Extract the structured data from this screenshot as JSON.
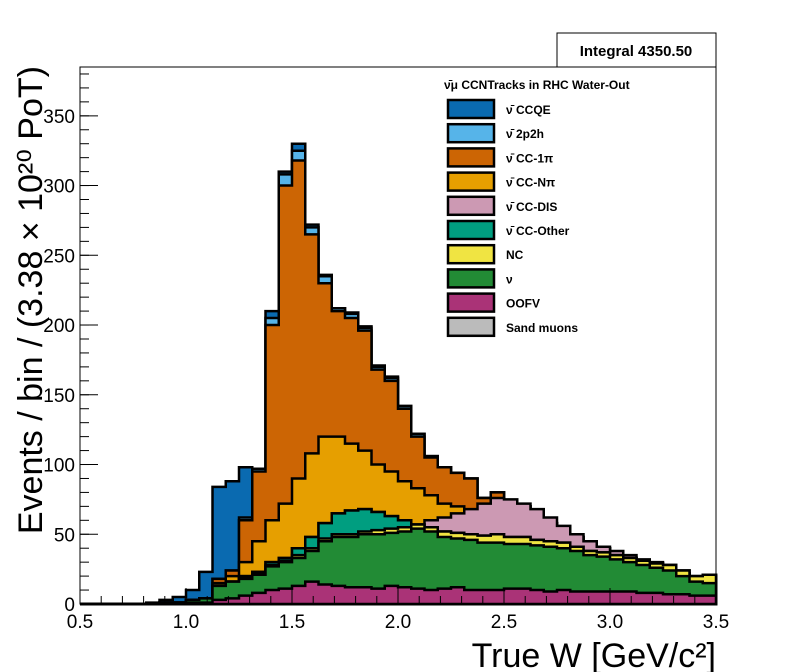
{
  "chart_data": {
    "type": "stacked-histogram",
    "title": "",
    "legend_header": "ν̄μ CCNTracks in RHC Water-Out",
    "xlabel": "True W [GeV/c²]",
    "ylabel": "Events / bin / (3.38 × 10²⁰ PoT)",
    "xlim": [
      0.5,
      3.5
    ],
    "ylim": [
      0,
      385
    ],
    "x_ticks": [
      "0.5",
      "1.0",
      "1.5",
      "2.0",
      "2.5",
      "3.0",
      "3.5"
    ],
    "y_ticks": [
      "0",
      "50",
      "100",
      "150",
      "200",
      "250",
      "300",
      "350"
    ],
    "legend_placement": "top-right",
    "stats_box": "Integral 4350.50",
    "bin_width": 0.0625,
    "stack_order_bottom_to_top": [
      "OOFV",
      "ν",
      "NC",
      "ν̄ CC-Other",
      "ν̄ CC-DIS",
      "ν̄ CC-Nπ",
      "ν̄ CC-1π",
      "ν̄ 2p2h",
      "ν̄ CCQE"
    ],
    "legend_entries": [
      {
        "name": "ν̄ CCQE",
        "color": "#0a6ab0"
      },
      {
        "name": "ν̄ 2p2h",
        "color": "#56b4e9"
      },
      {
        "name": "ν̄ CC-1π",
        "color": "#cc6504"
      },
      {
        "name": "ν̄ CC-Nπ",
        "color": "#e69f00"
      },
      {
        "name": "ν̄ CC-DIS",
        "color": "#cc99b3"
      },
      {
        "name": "ν̄ CC-Other",
        "color": "#009e80"
      },
      {
        "name": "NC",
        "color": "#f0e442"
      },
      {
        "name": "ν",
        "color": "#228b35"
      },
      {
        "name": "OOFV",
        "color": "#aa3377"
      },
      {
        "name": "Sand muons",
        "color": "#bbbbbb"
      }
    ],
    "cumulative_levels_note": "each series lists the cumulative stack height (top edge) per bin",
    "series_cumulative": [
      {
        "name": "OOFV",
        "values": [
          0,
          0,
          0,
          0,
          0,
          0,
          0,
          0,
          1,
          1,
          3,
          4,
          6,
          8,
          10,
          11,
          13,
          16,
          14,
          13,
          12,
          12,
          11,
          13,
          12,
          11,
          10,
          11,
          12,
          10,
          10,
          10,
          11,
          11,
          10,
          9,
          10,
          9,
          9,
          9,
          9,
          9,
          8,
          8,
          7,
          7,
          6,
          6
        ]
      },
      {
        "name": "ν",
        "values": [
          0,
          0,
          0,
          0,
          0,
          0,
          1,
          1,
          3,
          4,
          13,
          16,
          18,
          21,
          27,
          30,
          33,
          38,
          45,
          48,
          48,
          50,
          50,
          51,
          52,
          54,
          52,
          48,
          47,
          46,
          44,
          44,
          43,
          43,
          42,
          41,
          40,
          38,
          35,
          34,
          32,
          30,
          28,
          26,
          24,
          20,
          16,
          15
        ]
      },
      {
        "name": "NC",
        "values": [
          0,
          0,
          0,
          0,
          0,
          0,
          1,
          1,
          3,
          4,
          13,
          16,
          19,
          22,
          28,
          31,
          35,
          40,
          47,
          50,
          50,
          52,
          53,
          54,
          55,
          57,
          55,
          52,
          51,
          50,
          49,
          50,
          48,
          48,
          46,
          45,
          44,
          41,
          38,
          37,
          35,
          33,
          31,
          29,
          28,
          24,
          20,
          21
        ]
      },
      {
        "name": "ν̄ CC-Other",
        "values": [
          0,
          0,
          0,
          0,
          0,
          0,
          1,
          1,
          3,
          4,
          13,
          16,
          20,
          23,
          30,
          33,
          40,
          48,
          58,
          65,
          67,
          68,
          66,
          63,
          60,
          57,
          55,
          52,
          51,
          50,
          49,
          50,
          48,
          48,
          46,
          45,
          44,
          41,
          38,
          37,
          35,
          33,
          31,
          29,
          28,
          24,
          20,
          21
        ]
      },
      {
        "name": "ν̄ CC-DIS",
        "values": [
          0,
          0,
          0,
          0,
          0,
          0,
          1,
          1,
          3,
          4,
          13,
          16,
          20,
          23,
          30,
          33,
          40,
          48,
          58,
          65,
          67,
          68,
          66,
          63,
          60,
          57,
          60,
          62,
          65,
          68,
          72,
          76,
          75,
          72,
          68,
          62,
          56,
          50,
          45,
          41,
          38,
          35,
          32,
          30,
          28,
          24,
          20,
          21
        ]
      },
      {
        "name": "ν̄ CC-Nπ",
        "values": [
          0,
          0,
          0,
          0,
          0,
          0,
          1,
          1,
          3,
          4,
          15,
          20,
          30,
          45,
          60,
          72,
          90,
          108,
          120,
          120,
          115,
          110,
          100,
          95,
          88,
          83,
          78,
          72,
          70,
          65,
          62,
          60,
          56,
          52,
          48,
          45,
          42,
          38,
          36,
          33,
          30,
          28,
          26,
          24,
          22,
          20,
          18,
          18
        ]
      },
      {
        "name": "ν̄ CC-1π",
        "values": [
          0,
          0,
          0,
          0,
          0,
          0,
          1,
          1,
          3,
          4,
          18,
          24,
          60,
          95,
          200,
          300,
          318,
          265,
          230,
          210,
          205,
          196,
          168,
          160,
          140,
          120,
          105,
          98,
          94,
          90,
          76,
          80,
          72,
          70,
          62,
          58,
          54,
          48,
          45,
          40,
          36,
          33,
          29,
          27,
          24,
          22,
          19,
          20
        ]
      },
      {
        "name": "ν̄ 2p2h",
        "values": [
          0,
          0,
          0,
          0,
          0,
          0,
          1,
          1,
          3,
          4,
          18,
          24,
          62,
          97,
          205,
          308,
          325,
          270,
          235,
          212,
          208,
          198,
          170,
          162,
          142,
          122,
          106,
          98,
          94,
          90,
          76,
          80,
          72,
          70,
          62,
          58,
          54,
          48,
          45,
          40,
          36,
          33,
          29,
          27,
          24,
          22,
          19,
          20
        ]
      },
      {
        "name": "ν̄ CCQE",
        "values": [
          0,
          0,
          0,
          0,
          0,
          1,
          3,
          5,
          10,
          23,
          84,
          88,
          98,
          97,
          210,
          310,
          330,
          272,
          236,
          212,
          209,
          199,
          171,
          163,
          142,
          122,
          106,
          98,
          94,
          90,
          76,
          80,
          72,
          70,
          62,
          58,
          54,
          48,
          45,
          40,
          36,
          33,
          29,
          27,
          24,
          22,
          19,
          20
        ]
      }
    ]
  }
}
